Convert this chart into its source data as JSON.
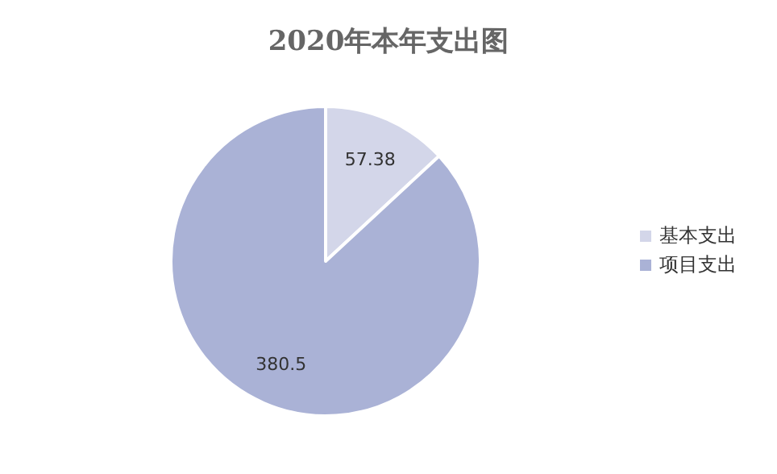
{
  "chart_data": {
    "type": "pie",
    "title": "2020年本年支出图",
    "categories": [
      "基本支出",
      "项目支出"
    ],
    "values": [
      57.38,
      380.5
    ],
    "colors": [
      "#d3d6e9",
      "#aab2d6"
    ],
    "data_labels": true,
    "legend": "right"
  }
}
